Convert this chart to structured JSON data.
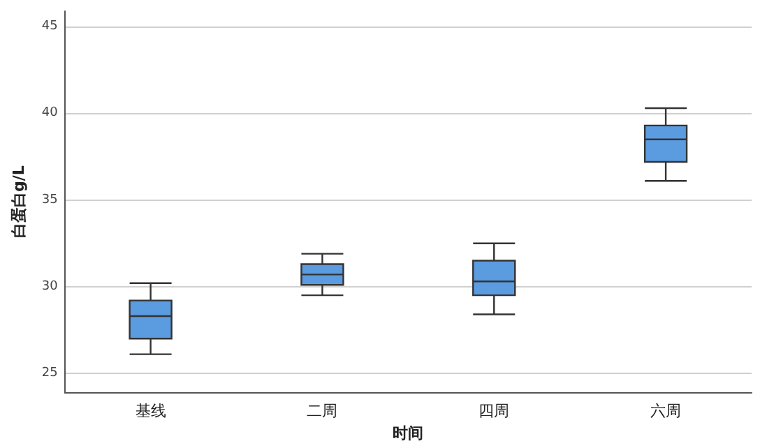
{
  "chart_data": {
    "type": "box",
    "xlabel": "时间",
    "ylabel": "白蛋白g/L",
    "categories": [
      "基线",
      "二周",
      "四周",
      "六周"
    ],
    "boxes": [
      {
        "low": 26.1,
        "q1": 27.0,
        "median": 28.3,
        "q3": 29.2,
        "high": 30.2
      },
      {
        "low": 29.5,
        "q1": 30.1,
        "median": 30.7,
        "q3": 31.3,
        "high": 31.9
      },
      {
        "low": 28.4,
        "q1": 29.5,
        "median": 30.3,
        "q3": 31.5,
        "high": 32.5
      },
      {
        "low": 36.1,
        "q1": 37.2,
        "median": 38.5,
        "q3": 39.3,
        "high": 40.3
      }
    ],
    "color": "#5b9be0",
    "ylim": [
      23.9,
      45.9
    ],
    "yticks": [
      25,
      30,
      35,
      40,
      45
    ],
    "grid": "y"
  }
}
